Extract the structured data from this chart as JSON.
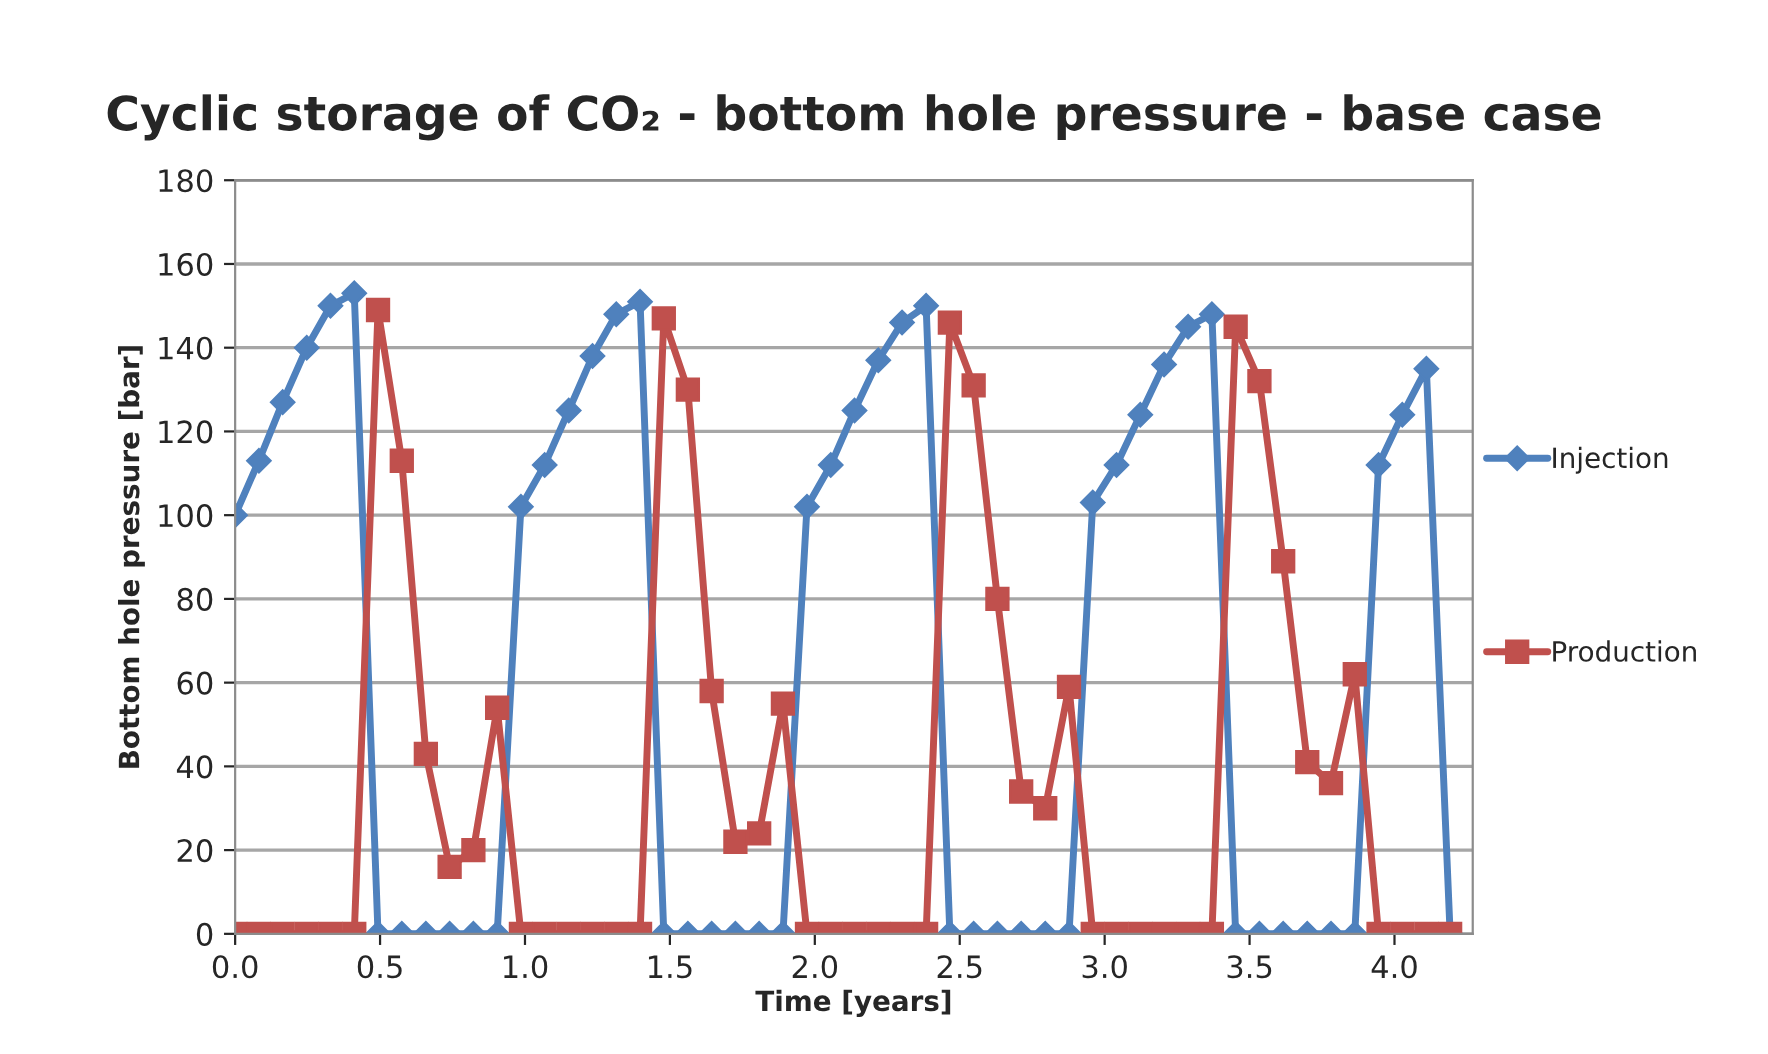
{
  "chart_data": {
    "type": "line",
    "title": "Cyclic storage of CO₂ - bottom hole pressure - base case",
    "xlabel": "Time [years]",
    "ylabel": "Bottom hole pressure [bar]",
    "x": [
      0,
      0.082,
      0.164,
      0.247,
      0.329,
      0.411,
      0.493,
      0.575,
      0.658,
      0.74,
      0.822,
      0.904,
      0.986,
      1.068,
      1.151,
      1.233,
      1.315,
      1.397,
      1.479,
      1.562,
      1.644,
      1.726,
      1.808,
      1.89,
      1.973,
      2.055,
      2.137,
      2.219,
      2.301,
      2.384,
      2.466,
      2.548,
      2.63,
      2.712,
      2.795,
      2.877,
      2.959,
      3.041,
      3.123,
      3.205,
      3.288,
      3.37,
      3.452,
      3.534,
      3.616,
      3.699,
      3.781,
      3.863,
      3.945,
      4.027,
      4.11,
      4.192
    ],
    "series": [
      {
        "name": "Injection",
        "color": "#4f81bd",
        "marker": "diamond",
        "values": [
          100,
          113,
          127,
          140,
          150,
          153,
          0,
          0,
          0,
          0,
          0,
          0,
          102,
          112,
          125,
          138,
          148,
          151,
          0,
          0,
          0,
          0,
          0,
          0,
          102,
          112,
          125,
          137,
          146,
          150,
          0,
          0,
          0,
          0,
          0,
          0,
          103,
          112,
          124,
          136,
          145,
          148,
          0,
          0,
          0,
          0,
          0,
          0,
          112,
          124,
          135,
          0
        ]
      },
      {
        "name": "Production",
        "color": "#c0504d",
        "marker": "square",
        "values": [
          0,
          0,
          0,
          0,
          0,
          0,
          149,
          113,
          43,
          16,
          20,
          54,
          0,
          0,
          0,
          0,
          0,
          0,
          147,
          130,
          58,
          22,
          24,
          55,
          0,
          0,
          0,
          0,
          0,
          0,
          146,
          131,
          80,
          34,
          30,
          59,
          0,
          0,
          0,
          0,
          0,
          0,
          145,
          132,
          89,
          41,
          36,
          62,
          0,
          0,
          0,
          0
        ]
      }
    ],
    "xlim": [
      0,
      4.27
    ],
    "xticks": [
      {
        "value": 0,
        "label": "0.0"
      },
      {
        "value": 0.5,
        "label": "0.5"
      },
      {
        "value": 1,
        "label": "1.0"
      },
      {
        "value": 1.5,
        "label": "1.5"
      },
      {
        "value": 2,
        "label": "2.0"
      },
      {
        "value": 2.5,
        "label": "2.5"
      },
      {
        "value": 3,
        "label": "3.0"
      },
      {
        "value": 3.5,
        "label": "3.5"
      },
      {
        "value": 4,
        "label": "4.0"
      }
    ],
    "ylim": [
      0,
      180
    ],
    "yticks": [
      0,
      20,
      40,
      60,
      80,
      100,
      120,
      140,
      160,
      180
    ],
    "grid": "y",
    "legend": "right",
    "line_style": "solid"
  }
}
